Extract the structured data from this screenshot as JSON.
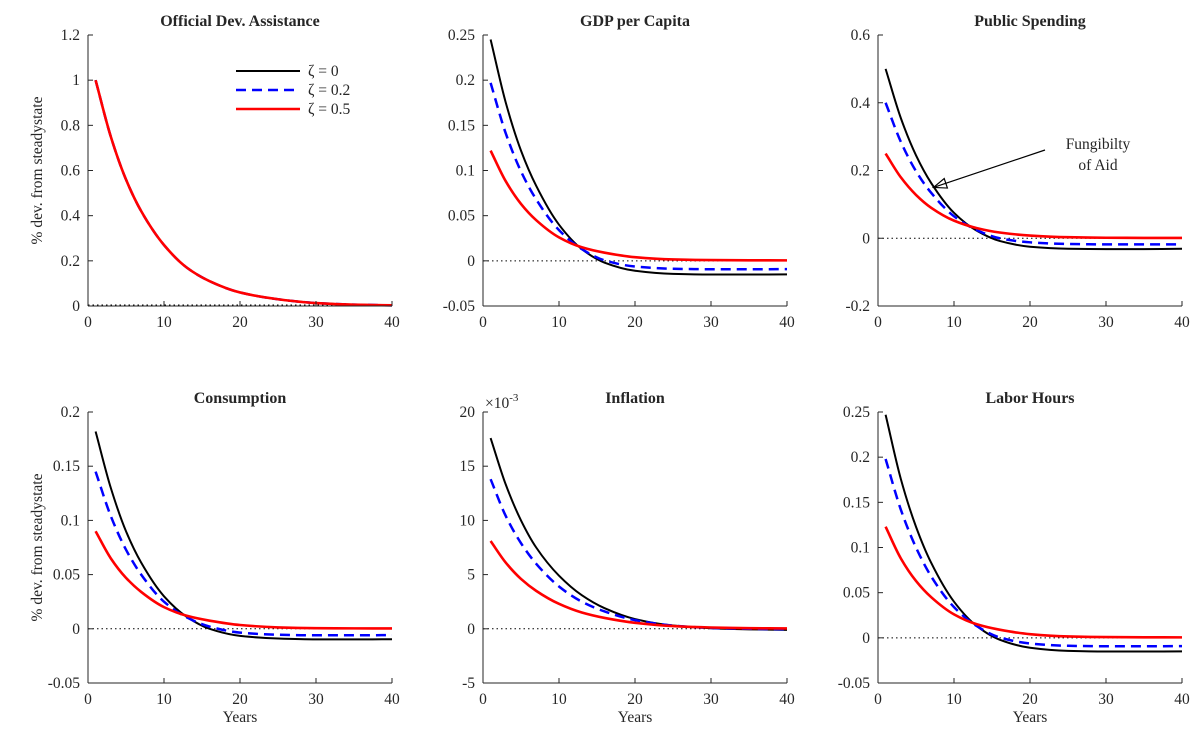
{
  "figure": {
    "legend": {
      "entries": [
        {
          "label": "ζ = 0",
          "color": "#000000",
          "dash": "solid"
        },
        {
          "label": "ζ = 0.2",
          "color": "#0000ff",
          "dash": "dashed"
        },
        {
          "label": "ζ = 0.5",
          "color": "#ff0000",
          "dash": "solid"
        }
      ],
      "placement": "top-right of first panel"
    }
  },
  "chart_data": [
    {
      "type": "line",
      "title": "Official Dev. Assistance",
      "xlabel": "",
      "ylabel": "% dev. from steadystate",
      "xlim": [
        0,
        40
      ],
      "ylim": [
        0,
        1.2
      ],
      "xticks": [
        0,
        10,
        20,
        30,
        40
      ],
      "xtick_labels": [
        "0",
        "10",
        "20",
        "30",
        "40"
      ],
      "yticks": [
        0,
        0.2,
        0.4,
        0.6,
        0.8,
        1,
        1.2
      ],
      "ytick_labels": [
        "0",
        "0.2",
        "0.4",
        "0.6",
        "0.8",
        "1",
        "1.2"
      ],
      "zero_line": true,
      "series": [
        {
          "name": "ζ = 0",
          "x": [
            1,
            3,
            5,
            7,
            10,
            13,
            16,
            20,
            25,
            30,
            35,
            40
          ],
          "values": [
            1.0,
            0.75,
            0.56,
            0.42,
            0.27,
            0.17,
            0.11,
            0.06,
            0.03,
            0.013,
            0.006,
            0.003
          ]
        },
        {
          "name": "ζ = 0.2",
          "x": [
            1,
            3,
            5,
            7,
            10,
            13,
            16,
            20,
            25,
            30,
            35,
            40
          ],
          "values": [
            1.0,
            0.75,
            0.56,
            0.42,
            0.27,
            0.17,
            0.11,
            0.06,
            0.03,
            0.013,
            0.006,
            0.003
          ]
        },
        {
          "name": "ζ = 0.5",
          "x": [
            1,
            3,
            5,
            7,
            10,
            13,
            16,
            20,
            25,
            30,
            35,
            40
          ],
          "values": [
            1.0,
            0.75,
            0.56,
            0.42,
            0.27,
            0.17,
            0.11,
            0.06,
            0.03,
            0.013,
            0.006,
            0.003
          ]
        }
      ]
    },
    {
      "type": "line",
      "title": "GDP per Capita",
      "xlabel": "",
      "ylabel": "",
      "xlim": [
        0,
        40
      ],
      "ylim": [
        -0.05,
        0.25
      ],
      "xticks": [
        0,
        10,
        20,
        30,
        40
      ],
      "xtick_labels": [
        "0",
        "10",
        "20",
        "30",
        "40"
      ],
      "yticks": [
        -0.05,
        0,
        0.05,
        0.1,
        0.15,
        0.2,
        0.25
      ],
      "ytick_labels": [
        "-0.05",
        "0",
        "0.05",
        "0.1",
        "0.15",
        "0.2",
        "0.25"
      ],
      "zero_line": true,
      "series": [
        {
          "name": "ζ = 0",
          "x": [
            1,
            3,
            5,
            7,
            10,
            13,
            16,
            20,
            25,
            30,
            35,
            40
          ],
          "values": [
            0.245,
            0.175,
            0.122,
            0.083,
            0.04,
            0.013,
            -0.002,
            -0.011,
            -0.0145,
            -0.0152,
            -0.0152,
            -0.015
          ]
        },
        {
          "name": "ζ = 0.2",
          "x": [
            1,
            3,
            5,
            7,
            10,
            13,
            16,
            20,
            25,
            30,
            35,
            40
          ],
          "values": [
            0.197,
            0.141,
            0.099,
            0.068,
            0.034,
            0.013,
            0.0005,
            -0.0063,
            -0.0088,
            -0.0093,
            -0.0093,
            -0.0092
          ]
        },
        {
          "name": "ζ = 0.5",
          "x": [
            1,
            3,
            5,
            7,
            10,
            13,
            16,
            20,
            25,
            30,
            35,
            40
          ],
          "values": [
            0.122,
            0.088,
            0.063,
            0.045,
            0.026,
            0.015,
            0.009,
            0.004,
            0.0015,
            0.0008,
            0.0006,
            0.0005
          ]
        }
      ]
    },
    {
      "type": "line",
      "title": "Public Spending",
      "xlabel": "",
      "ylabel": "",
      "xlim": [
        0,
        40
      ],
      "ylim": [
        -0.2,
        0.6
      ],
      "xticks": [
        0,
        10,
        20,
        30,
        40
      ],
      "xtick_labels": [
        "0",
        "10",
        "20",
        "30",
        "40"
      ],
      "yticks": [
        -0.2,
        0,
        0.2,
        0.4,
        0.6
      ],
      "ytick_labels": [
        "-0.2",
        "0",
        "0.2",
        "0.4",
        "0.6"
      ],
      "zero_line": true,
      "annotation": {
        "text": [
          "Fungibilty",
          "of Aid"
        ],
        "arrow_to": [
          7.3,
          0.15
        ]
      },
      "series": [
        {
          "name": "ζ = 0",
          "x": [
            1,
            3,
            5,
            7,
            10,
            13,
            16,
            20,
            25,
            30,
            35,
            40
          ],
          "values": [
            0.5,
            0.355,
            0.245,
            0.163,
            0.075,
            0.022,
            -0.008,
            -0.025,
            -0.031,
            -0.032,
            -0.032,
            -0.031
          ]
        },
        {
          "name": "ζ = 0.2",
          "x": [
            1,
            3,
            5,
            7,
            10,
            13,
            16,
            20,
            25,
            30,
            35,
            40
          ],
          "values": [
            0.4,
            0.285,
            0.198,
            0.134,
            0.065,
            0.024,
            0.0,
            -0.012,
            -0.017,
            -0.018,
            -0.018,
            -0.018
          ]
        },
        {
          "name": "ζ = 0.5",
          "x": [
            1,
            3,
            5,
            7,
            10,
            13,
            16,
            20,
            25,
            30,
            35,
            40
          ],
          "values": [
            0.25,
            0.18,
            0.128,
            0.09,
            0.052,
            0.03,
            0.017,
            0.008,
            0.003,
            0.0015,
            0.001,
            0.0008
          ]
        }
      ]
    },
    {
      "type": "line",
      "title": "Consumption",
      "xlabel": "Years",
      "ylabel": "% dev. from steadystate",
      "xlim": [
        0,
        40
      ],
      "ylim": [
        -0.05,
        0.2
      ],
      "xticks": [
        0,
        10,
        20,
        30,
        40
      ],
      "xtick_labels": [
        "0",
        "10",
        "20",
        "30",
        "40"
      ],
      "yticks": [
        -0.05,
        0,
        0.05,
        0.1,
        0.15,
        0.2
      ],
      "ytick_labels": [
        "-0.05",
        "0",
        "0.05",
        "0.1",
        "0.15",
        "0.2"
      ],
      "zero_line": true,
      "series": [
        {
          "name": "ζ = 0",
          "x": [
            1,
            3,
            5,
            7,
            10,
            13,
            16,
            20,
            25,
            30,
            35,
            40
          ],
          "values": [
            0.182,
            0.13,
            0.09,
            0.061,
            0.03,
            0.011,
            0.0,
            -0.0065,
            -0.009,
            -0.0098,
            -0.0098,
            -0.0096
          ]
        },
        {
          "name": "ζ = 0.2",
          "x": [
            1,
            3,
            5,
            7,
            10,
            13,
            16,
            20,
            25,
            30,
            35,
            40
          ],
          "values": [
            0.145,
            0.104,
            0.073,
            0.05,
            0.025,
            0.0105,
            0.002,
            -0.0035,
            -0.0055,
            -0.006,
            -0.006,
            -0.0058
          ]
        },
        {
          "name": "ζ = 0.5",
          "x": [
            1,
            3,
            5,
            7,
            10,
            13,
            16,
            20,
            25,
            30,
            35,
            40
          ],
          "values": [
            0.09,
            0.065,
            0.047,
            0.034,
            0.02,
            0.012,
            0.0075,
            0.0035,
            0.0013,
            0.0006,
            0.0004,
            0.0003
          ]
        }
      ]
    },
    {
      "type": "line",
      "title": "Inflation",
      "xlabel": "Years",
      "ylabel": "",
      "xlim": [
        0,
        40
      ],
      "ylim": [
        -5,
        20
      ],
      "y_multiplier": "×10^-3",
      "y_multiplier_base": "×10",
      "y_multiplier_exp": "-3",
      "xticks": [
        0,
        10,
        20,
        30,
        40
      ],
      "xtick_labels": [
        "0",
        "10",
        "20",
        "30",
        "40"
      ],
      "yticks": [
        -5,
        0,
        5,
        10,
        15,
        20
      ],
      "ytick_labels": [
        "-5",
        "0",
        "5",
        "10",
        "15",
        "20"
      ],
      "zero_line": true,
      "series": [
        {
          "name": "ζ = 0",
          "x": [
            1,
            3,
            5,
            7,
            10,
            13,
            16,
            20,
            25,
            30,
            35,
            40
          ],
          "values": [
            17.6,
            13.3,
            10.0,
            7.5,
            4.9,
            3.1,
            1.9,
            0.9,
            0.3,
            0.05,
            -0.05,
            -0.1
          ]
        },
        {
          "name": "ζ = 0.2",
          "x": [
            1,
            3,
            5,
            7,
            10,
            13,
            16,
            20,
            25,
            30,
            35,
            40
          ],
          "values": [
            13.8,
            10.4,
            7.9,
            6.0,
            3.9,
            2.5,
            1.6,
            0.8,
            0.3,
            0.08,
            0.0,
            -0.05
          ]
        },
        {
          "name": "ζ = 0.5",
          "x": [
            1,
            3,
            5,
            7,
            10,
            13,
            16,
            20,
            25,
            30,
            35,
            40
          ],
          "values": [
            8.1,
            6.1,
            4.6,
            3.5,
            2.3,
            1.5,
            1.0,
            0.55,
            0.25,
            0.12,
            0.06,
            0.03
          ]
        }
      ]
    },
    {
      "type": "line",
      "title": "Labor Hours",
      "xlabel": "Years",
      "ylabel": "",
      "xlim": [
        0,
        40
      ],
      "ylim": [
        -0.05,
        0.25
      ],
      "xticks": [
        0,
        10,
        20,
        30,
        40
      ],
      "xtick_labels": [
        "0",
        "10",
        "20",
        "30",
        "40"
      ],
      "yticks": [
        -0.05,
        0,
        0.05,
        0.1,
        0.15,
        0.2,
        0.25
      ],
      "ytick_labels": [
        "-0.05",
        "0",
        "0.05",
        "0.1",
        "0.15",
        "0.2",
        "0.25"
      ],
      "zero_line": true,
      "series": [
        {
          "name": "ζ = 0",
          "x": [
            1,
            3,
            5,
            7,
            10,
            13,
            16,
            20,
            25,
            30,
            35,
            40
          ],
          "values": [
            0.247,
            0.176,
            0.123,
            0.083,
            0.04,
            0.013,
            -0.002,
            -0.011,
            -0.0145,
            -0.0152,
            -0.0152,
            -0.015
          ]
        },
        {
          "name": "ζ = 0.2",
          "x": [
            1,
            3,
            5,
            7,
            10,
            13,
            16,
            20,
            25,
            30,
            35,
            40
          ],
          "values": [
            0.198,
            0.142,
            0.1,
            0.068,
            0.034,
            0.013,
            0.0005,
            -0.0063,
            -0.0088,
            -0.0093,
            -0.0093,
            -0.0092
          ]
        },
        {
          "name": "ζ = 0.5",
          "x": [
            1,
            3,
            5,
            7,
            10,
            13,
            16,
            20,
            25,
            30,
            35,
            40
          ],
          "values": [
            0.123,
            0.088,
            0.063,
            0.045,
            0.026,
            0.015,
            0.009,
            0.004,
            0.0015,
            0.0008,
            0.0006,
            0.0005
          ]
        }
      ]
    }
  ]
}
